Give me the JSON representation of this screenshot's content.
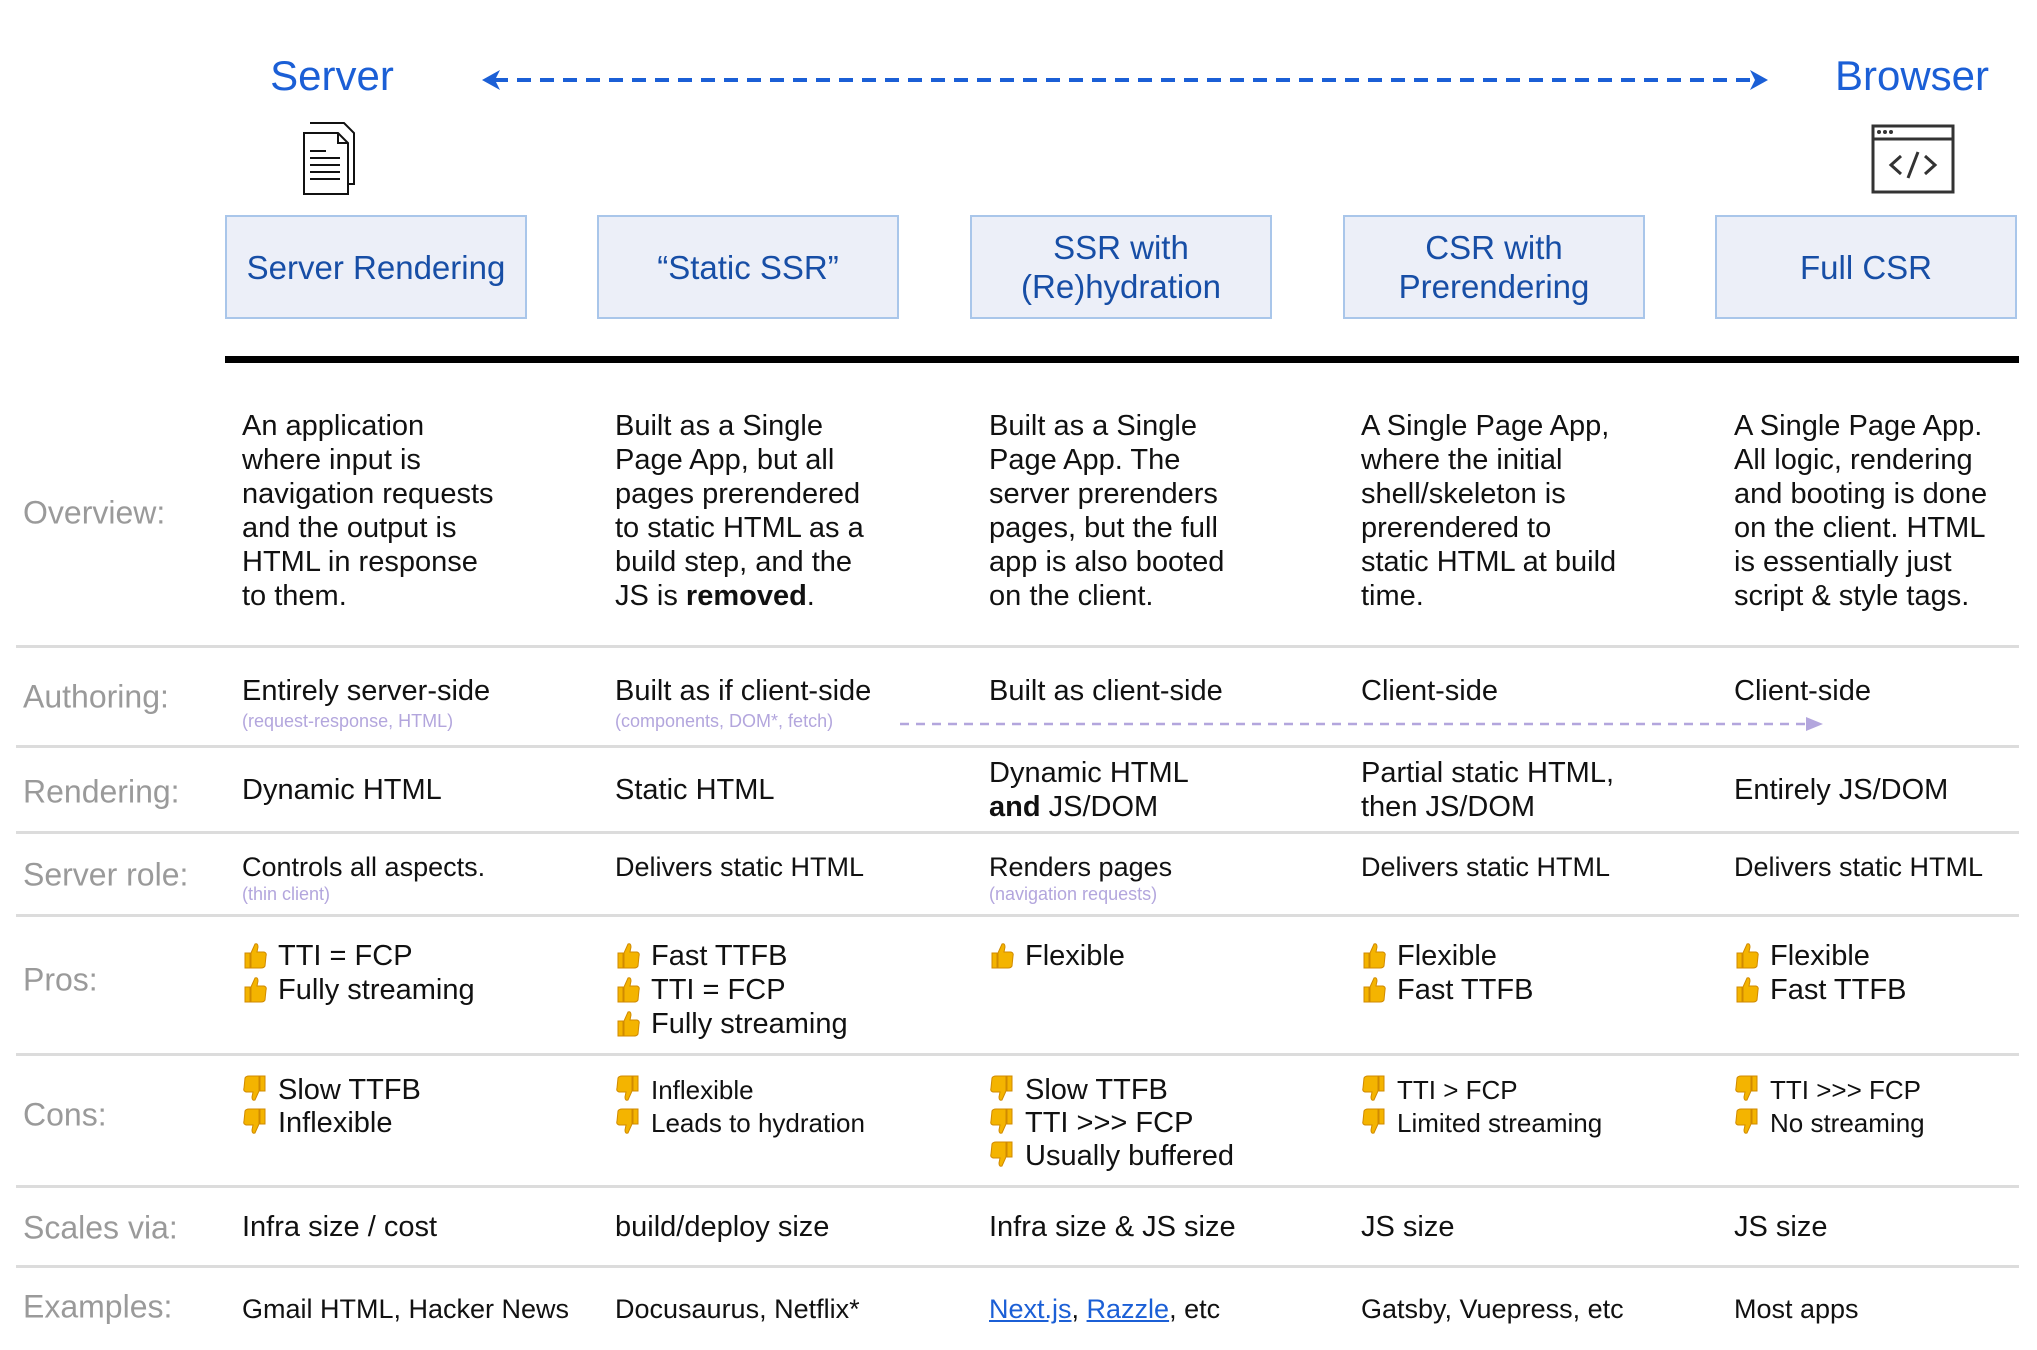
{
  "ends": {
    "left": "Server",
    "right": "Browser"
  },
  "colors": {
    "accent": "#1b5fd6",
    "header_bg": "#eceff8",
    "header_text": "#174ea6",
    "sub_text": "#b3a6dd",
    "label": "#9a9a9a",
    "thumb": "#f4b400"
  },
  "row_labels": {
    "overview": "Overview:",
    "authoring": "Authoring:",
    "rendering": "Rendering:",
    "server_role": "Server role:",
    "pros": "Pros:",
    "cons": "Cons:",
    "scales": "Scales via:",
    "examples": "Examples:"
  },
  "columns": [
    {
      "header": [
        "Server Rendering"
      ],
      "overview": [
        [
          "An application"
        ],
        [
          "where input is"
        ],
        [
          "navigation requests"
        ],
        [
          "and the output is"
        ],
        [
          "HTML in response"
        ],
        [
          "to them."
        ]
      ],
      "authoring": {
        "main": "Entirely server-side",
        "sub": "(request-response, HTML)"
      },
      "rendering": [
        [
          {
            "t": "Dynamic HTML"
          }
        ]
      ],
      "server_role": {
        "main": "Controls all aspects.",
        "sub": "(thin client)"
      },
      "pros": [
        "TTI = FCP",
        "Fully streaming"
      ],
      "cons": [
        "Slow TTFB",
        "Inflexible"
      ],
      "scales": "Infra size / cost",
      "examples": [
        {
          "t": "Gmail HTML, Hacker News"
        }
      ]
    },
    {
      "header": [
        "“Static SSR”"
      ],
      "overview": [
        [
          "Built as a Single"
        ],
        [
          "Page App, but all"
        ],
        [
          "pages prerendered"
        ],
        [
          "to static HTML as a"
        ],
        [
          "build step, and the"
        ],
        [
          "JS is ",
          {
            "t": "removed",
            "b": true
          },
          "."
        ]
      ],
      "authoring": {
        "main": "Built as if client-side",
        "sub": "(components, DOM*, fetch)"
      },
      "rendering": [
        [
          {
            "t": "Static HTML"
          }
        ]
      ],
      "server_role": {
        "main": "Delivers static HTML",
        "sub": ""
      },
      "pros": [
        "Fast TTFB",
        "TTI = FCP",
        "Fully streaming"
      ],
      "cons": [
        "Inflexible",
        "Leads to hydration"
      ],
      "scales": "build/deploy size",
      "examples": [
        {
          "t": "Docusaurus, Netflix*"
        }
      ]
    },
    {
      "header": [
        "SSR with",
        "(Re)hydration"
      ],
      "overview": [
        [
          "Built as a Single"
        ],
        [
          "Page App. The"
        ],
        [
          "server prerenders"
        ],
        [
          "pages, but the full"
        ],
        [
          "app is also booted"
        ],
        [
          "on the client."
        ]
      ],
      "authoring": {
        "main": "Built as client-side",
        "sub": ""
      },
      "rendering": [
        [
          {
            "t": "Dynamic HTML"
          }
        ],
        [
          {
            "t": "and",
            "b": true
          },
          {
            "t": " JS/DOM"
          }
        ]
      ],
      "server_role": {
        "main": "Renders pages",
        "sub": "(navigation requests)"
      },
      "pros": [
        "Flexible"
      ],
      "cons": [
        "Slow TTFB",
        "TTI >>> FCP",
        "Usually buffered"
      ],
      "scales": "Infra size & JS size",
      "examples": [
        {
          "t": "Next.js",
          "link": true
        },
        {
          "t": ", "
        },
        {
          "t": "Razzle",
          "link": true
        },
        {
          "t": ", etc"
        }
      ]
    },
    {
      "header": [
        "CSR with",
        "Prerendering"
      ],
      "overview": [
        [
          "A Single Page App,"
        ],
        [
          "where the initial"
        ],
        [
          "shell/skeleton is"
        ],
        [
          "prerendered to"
        ],
        [
          "static HTML at build"
        ],
        [
          "time."
        ]
      ],
      "authoring": {
        "main": "Client-side",
        "sub": ""
      },
      "rendering": [
        [
          {
            "t": "Partial static HTML,"
          }
        ],
        [
          {
            "t": "then JS/DOM"
          }
        ]
      ],
      "server_role": {
        "main": "Delivers static HTML",
        "sub": ""
      },
      "pros": [
        "Flexible",
        "Fast TTFB"
      ],
      "cons": [
        "TTI > FCP",
        "Limited streaming"
      ],
      "scales": "JS size",
      "examples": [
        {
          "t": "Gatsby, Vuepress, etc"
        }
      ]
    },
    {
      "header": [
        "Full CSR"
      ],
      "overview": [
        [
          "A Single Page App."
        ],
        [
          "All logic, rendering"
        ],
        [
          "and booting is done"
        ],
        [
          "on the client. HTML"
        ],
        [
          "is essentially just"
        ],
        [
          "script & style tags."
        ]
      ],
      "authoring": {
        "main": "Client-side",
        "sub": ""
      },
      "rendering": [
        [
          {
            "t": "Entirely JS/DOM"
          }
        ]
      ],
      "server_role": {
        "main": "Delivers static HTML",
        "sub": ""
      },
      "pros": [
        "Flexible",
        "Fast TTFB"
      ],
      "cons": [
        "TTI >>> FCP",
        "No streaming"
      ],
      "scales": "JS size",
      "examples": [
        {
          "t": "Most apps"
        }
      ]
    }
  ]
}
